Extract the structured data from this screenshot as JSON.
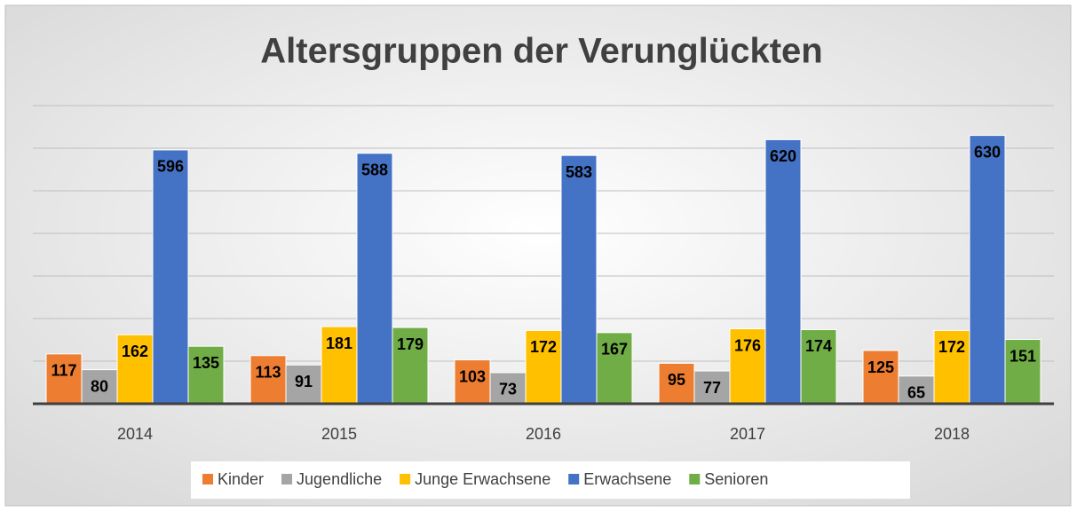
{
  "chart_data": {
    "type": "bar",
    "title": "Altersgruppen der Verunglückten",
    "categories": [
      "2014",
      "2015",
      "2016",
      "2017",
      "2018"
    ],
    "series": [
      {
        "name": "Kinder",
        "color": "#ed7d31",
        "values": [
          117,
          113,
          103,
          95,
          125
        ]
      },
      {
        "name": "Jugendliche",
        "color": "#a5a5a5",
        "values": [
          80,
          91,
          73,
          77,
          65
        ]
      },
      {
        "name": "Junge Erwachsene",
        "color": "#ffc000",
        "values": [
          162,
          181,
          172,
          176,
          172
        ]
      },
      {
        "name": "Erwachsene",
        "color": "#4472c4",
        "values": [
          596,
          588,
          583,
          620,
          630
        ]
      },
      {
        "name": "Senioren",
        "color": "#70ad47",
        "values": [
          135,
          179,
          167,
          174,
          151
        ]
      }
    ],
    "ylim": [
      0,
      700
    ],
    "yticks": [
      0,
      100,
      200,
      300,
      400,
      500,
      600,
      700
    ],
    "grid": true,
    "legend": "bottom"
  }
}
